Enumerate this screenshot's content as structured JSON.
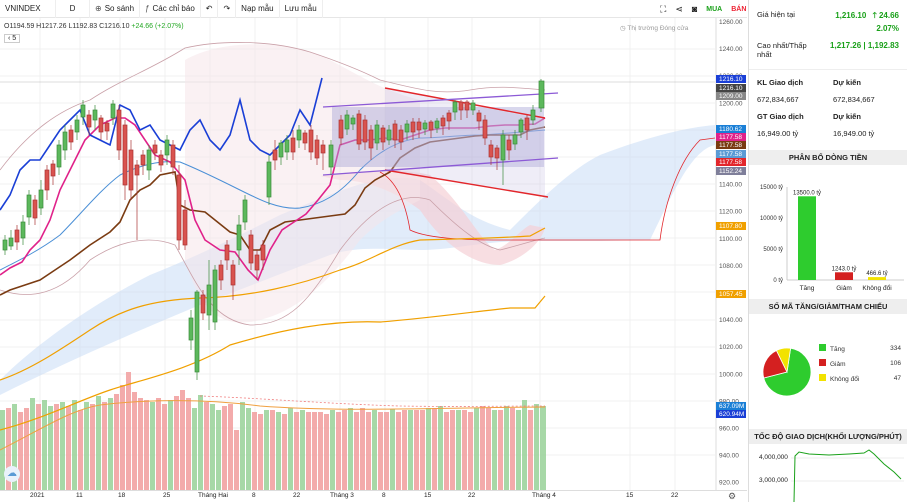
{
  "toolbar": {
    "symbol": "VNINDEX",
    "interval": "D",
    "compare": "So sánh",
    "indicators": "Các chỉ báo",
    "templates": "Nạp mẫu",
    "save_template": "Lưu mẫu",
    "buy": "MUA",
    "sell": "BÁN"
  },
  "legend": {
    "ohlc": "O1194.59  H1217.26  L1192.83  C1216.10",
    "change": "+24.66 (+2.07%)",
    "market_status": "Thị trường Đóng cửa",
    "collapse_badge": "5"
  },
  "price_axis": {
    "ticks": [
      "1260.00",
      "1240.00",
      "1220.00",
      "1200.00",
      "1180.00",
      "1160.00",
      "1140.00",
      "1120.00",
      "1100.00",
      "1080.00",
      "1060.00",
      "1040.00",
      "1020.00",
      "1000.00",
      "980.00",
      "960.00",
      "940.00",
      "920.00"
    ],
    "labels": [
      {
        "text": "1216.10",
        "color": "#1a3fd6"
      },
      {
        "text": "1216.10",
        "color": "#444444"
      },
      {
        "text": "1209.00",
        "color": "#888888"
      },
      {
        "text": "1180.62",
        "color": "#1a7fd6"
      },
      {
        "text": "1177.58",
        "color": "#e0228a"
      },
      {
        "text": "1177.58",
        "color": "#7a3b12"
      },
      {
        "text": "1177.58",
        "color": "#5b9bd5"
      },
      {
        "text": "1177.58",
        "color": "#e2262b"
      },
      {
        "text": "1152.24",
        "color": "#7f7f9a"
      },
      {
        "text": "1107.80",
        "color": "#f0a000"
      },
      {
        "text": "1057.45",
        "color": "#f0a000"
      },
      {
        "text": "637.09M",
        "color": "#1a7fd6"
      },
      {
        "text": "620.94M",
        "color": "#1a3fd6"
      }
    ]
  },
  "time_axis": {
    "ticks": [
      "2021",
      "11",
      "18",
      "25",
      "Tháng Hai",
      "8",
      "22",
      "Tháng 3",
      "8",
      "15",
      "22",
      "Tháng 4",
      "15",
      "22"
    ]
  },
  "info": {
    "current_price_label": "Giá hiện tại",
    "current_price": "1,216.10",
    "change": "24.66",
    "change_pct": "2.07%",
    "high_low_label": "Cao nhất/Thấp nhất",
    "high_low": "1,217.26 | 1,192.83",
    "kl_label": "KL Giao dịch",
    "kl_forecast_label": "Dự kiến",
    "kl_value": "672,834,667",
    "kl_forecast": "672,834,667",
    "gt_label": "GT Giao dịch",
    "gt_forecast_label": "Dự kiến",
    "gt_value": "16,949.00 tỷ",
    "gt_forecast": "16,949.00 tỷ"
  },
  "flow": {
    "title": "PHÂN BỔ DÒNG TIỀN",
    "chart_data": {
      "type": "bar",
      "categories": [
        "Tăng",
        "Giảm",
        "Không đổi"
      ],
      "values": [
        13500.0,
        1243.0,
        466.6
      ],
      "value_labels": [
        "13500.0 tỷ",
        "1243.0 tỷ",
        "466.6 tỷ"
      ],
      "colors": [
        "#2ecc2e",
        "#d42020",
        "#f2e200"
      ],
      "ylim": [
        0,
        15000
      ],
      "yticks": [
        "15000 tỷ",
        "10000 tỷ",
        "5000 tỷ",
        "0 tỷ"
      ]
    }
  },
  "breadth": {
    "title": "SỐ MÃ TĂNG/GIẢM/THAM CHIẾU",
    "chart_data": {
      "type": "pie",
      "categories": [
        "Tăng",
        "Giảm",
        "Không đổi"
      ],
      "values": [
        334,
        106,
        47
      ],
      "colors": [
        "#2ecc2e",
        "#d42020",
        "#f2e200"
      ]
    }
  },
  "speed": {
    "title": "TỐC ĐỘ GIAO DỊCH(KHỐI LƯỢNG/PHÚT)",
    "yticks": [
      "4,000,000",
      "3,000,000"
    ],
    "color": "#1aa11a"
  }
}
